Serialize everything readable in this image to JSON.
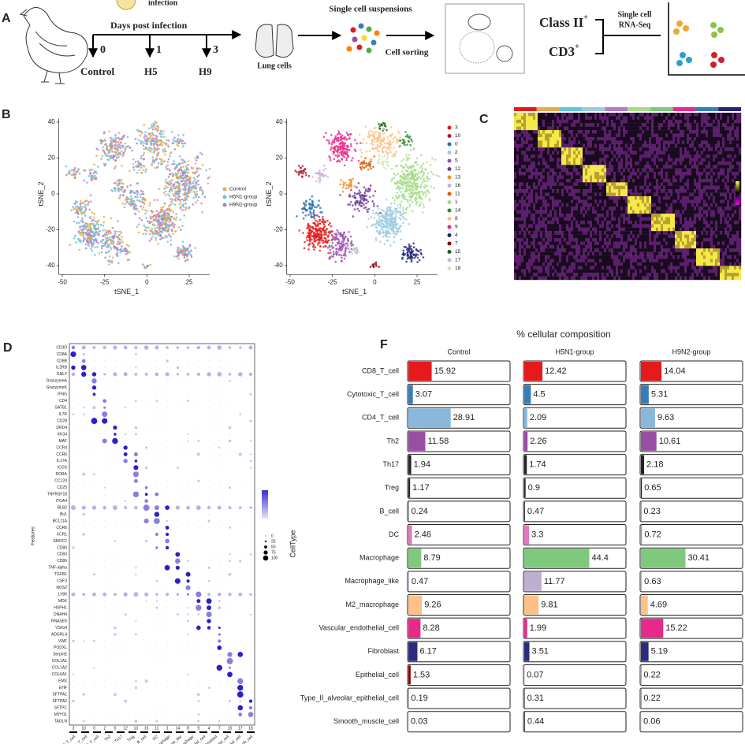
{
  "panel_a": {
    "label": "A",
    "infection": "infection",
    "days_title": "Days post infection",
    "days": [
      "0",
      "1",
      "3"
    ],
    "groups": [
      "Control",
      "H5",
      "H9"
    ],
    "lung": "Lung cells",
    "suspensions": "Single cell suspensions",
    "sorting": "Cell sorting",
    "class2": "Class II",
    "class2_sup": "+",
    "cd3": "CD3",
    "cd3_sup": "+",
    "seq": [
      "Single cell",
      "RNA-Seq"
    ]
  },
  "panel_b": {
    "label": "B",
    "xlabel": "tSNE_1",
    "ylabel": "tSNE_2",
    "xlim": [
      -52,
      37
    ],
    "ylim": [
      -45,
      42
    ],
    "xticks": [
      -50,
      -25,
      0,
      25
    ],
    "yticks": [
      -40,
      -20,
      0,
      20,
      40
    ],
    "groups": [
      {
        "name": "Control",
        "color": "#e8a94a"
      },
      {
        "name": "H5N1-group",
        "color": "#62c3dc"
      },
      {
        "name": "H9N2-group",
        "color": "#b27ccc"
      }
    ],
    "clusters": [
      {
        "name": "3",
        "color": "#e31a1c"
      },
      {
        "name": "10",
        "color": "#b2182b"
      },
      {
        "name": "0",
        "color": "#2b6cb0"
      },
      {
        "name": "2",
        "color": "#9ecae1"
      },
      {
        "name": "5",
        "color": "#9e4fb0"
      },
      {
        "name": "12",
        "color": "#6a3d9a"
      },
      {
        "name": "13",
        "color": "#f28e2b"
      },
      {
        "name": "16",
        "color": "#cab2d6"
      },
      {
        "name": "11",
        "color": "#d95f02"
      },
      {
        "name": "1",
        "color": "#a6dc8a"
      },
      {
        "name": "14",
        "color": "#2f8f2f"
      },
      {
        "name": "8",
        "color": "#fdc086"
      },
      {
        "name": "9",
        "color": "#e7298a"
      },
      {
        "name": "4",
        "color": "#23237a"
      },
      {
        "name": "7",
        "color": "#8b0000"
      },
      {
        "name": "15",
        "color": "#1b5e20"
      },
      {
        "name": "17",
        "color": "#bcbddc"
      },
      {
        "name": "18",
        "color": "#c7e9c0"
      }
    ]
  },
  "panel_c": {
    "label": "C"
  },
  "panel_d": {
    "label": "D",
    "ylabel": "Features",
    "legend_title": "CellType",
    "size_legend": [
      0,
      25,
      50,
      75,
      100
    ],
    "features": [
      "CD3D",
      "CD8A",
      "CD8B",
      "IL2RB",
      "GNLY",
      "GranzymeA",
      "GranzymeK",
      "IFNG",
      "CD4",
      "SATB1",
      "IL7R",
      "CD28",
      "DRD4",
      "KK34",
      "MAF",
      "CCR4",
      "CCR6",
      "IL17A",
      "ICOS",
      "RORA",
      "CCL20",
      "CD25",
      "TNFRSF18",
      "ITGA4",
      "BLB2",
      "Bu1",
      "BCL11A",
      "CCR6",
      "XCR1",
      "SMOC2",
      "CD80",
      "CD83",
      "CD86",
      "TNF-alpha",
      "TGFB1",
      "CSF3",
      "NOS2",
      "LY86",
      "MDK",
      "HSPH1",
      "DNAH4",
      "RNASE6",
      "VSIG4",
      "ADGRL4",
      "VWF",
      "PODXL",
      "SerpinE",
      "COL1A1",
      "COL1A2",
      "COL6A1",
      "EMX",
      "EHF",
      "SFTPA1",
      "SFTPA2",
      "SFTPC",
      "MYH11",
      "TAGLN"
    ],
    "clusters": [
      "3",
      "10",
      "0",
      "2",
      "5",
      "12",
      "13",
      "16",
      "11",
      "1",
      "14",
      "8",
      "9",
      "4",
      "7",
      "15",
      "17",
      "18"
    ],
    "cell_types": [
      "CD8_T_cell",
      "Cytotoxic_T_cell",
      "CD4_T_cell",
      "Th2",
      "Th17",
      "Treg",
      "B_cell",
      "DC",
      "Macrophage",
      "Macrophage_like",
      "M2_macrophage",
      "Vascular_endothelial_cell",
      "Fibroblast",
      "Epithelial_cell",
      "Type_II_alveolar_epithelial_cell",
      "Smooth_muscle_cell"
    ]
  },
  "panel_f": {
    "label": "F",
    "type": "bar",
    "title": "% cellular composition",
    "xlim": [
      0,
      70
    ],
    "categories": [
      "CD8_T_cell",
      "Cytotoxic_T_cell",
      "CD4_T_cell",
      "Th2",
      "Th17",
      "Treg",
      "B_cell",
      "DC",
      "Macrophage",
      "Macrophage_like",
      "M2_macrophage",
      "Vascular_endothelial_cell",
      "Fibroblast",
      "Epithelial_cell",
      "Type_II_alveolar_epithelial_cell",
      "Smooth_muscle_cell"
    ],
    "colors": [
      "#e41a1c",
      "#377eb8",
      "#8ab8dc",
      "#984ea3",
      "#222222",
      "#222222",
      "#222222",
      "#e377c2",
      "#7fc97f",
      "#beaed4",
      "#fdc086",
      "#e7298a",
      "#2c2c7c",
      "#8b0000",
      "#222222",
      "#222222"
    ],
    "series": [
      {
        "name": "Control",
        "values": [
          15.92,
          3.07,
          28.91,
          11.58,
          1.94,
          1.17,
          0.24,
          2.46,
          8.79,
          0.47,
          9.26,
          8.28,
          6.17,
          1.53,
          0.19,
          0.03
        ]
      },
      {
        "name": "H5N1-group",
        "values": [
          12.42,
          4.5,
          2.09,
          2.26,
          1.74,
          0.9,
          0.47,
          3.3,
          44.4,
          11.77,
          9.81,
          1.99,
          3.51,
          0.07,
          0.31,
          0.44
        ]
      },
      {
        "name": "H9N2-group",
        "values": [
          14.04,
          5.31,
          9.63,
          10.61,
          2.18,
          0.65,
          0.23,
          0.72,
          30.41,
          0.63,
          4.69,
          15.22,
          5.19,
          0.22,
          0.22,
          0.06
        ]
      }
    ]
  }
}
